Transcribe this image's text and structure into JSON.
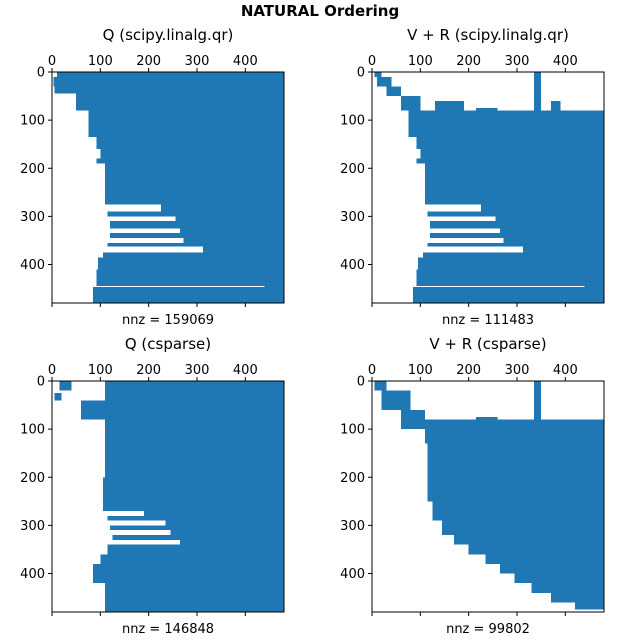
{
  "suptitle": "NATURAL Ordering",
  "colors": {
    "fill": "#1f77b4",
    "axis": "#000000",
    "background": "#ffffff"
  },
  "chart_data": [
    {
      "type": "spy",
      "title": "Q (scipy.linalg.qr)",
      "xlabel": "nnz = 159069",
      "xticks": [
        0,
        100,
        200,
        300,
        400
      ],
      "yticks": [
        0,
        100,
        200,
        300,
        400
      ],
      "xlim": [
        0,
        480
      ],
      "ylim": [
        480,
        0
      ],
      "bands": [
        {
          "y": [
            0,
            10
          ],
          "x": [
            10,
            480
          ]
        },
        {
          "y": [
            10,
            30
          ],
          "x": [
            3,
            480
          ]
        },
        {
          "y": [
            30,
            45
          ],
          "x": [
            5,
            480
          ]
        },
        {
          "y": [
            45,
            80
          ],
          "x": [
            50,
            480
          ]
        },
        {
          "y": [
            80,
            135
          ],
          "x": [
            75,
            480
          ]
        },
        {
          "y": [
            135,
            160
          ],
          "x": [
            92,
            480
          ]
        },
        {
          "y": [
            160,
            180
          ],
          "x": [
            100,
            480
          ]
        },
        {
          "y": [
            180,
            190
          ],
          "x": [
            92,
            480
          ]
        },
        {
          "y": [
            190,
            275
          ],
          "x": [
            110,
            480
          ]
        },
        {
          "y": [
            275,
            290
          ],
          "x": [
            225,
            480
          ]
        },
        {
          "y": [
            290,
            300
          ],
          "x": [
            115,
            480
          ]
        },
        {
          "y": [
            300,
            310
          ],
          "x": [
            255,
            480
          ]
        },
        {
          "y": [
            310,
            325
          ],
          "x": [
            120,
            480
          ]
        },
        {
          "y": [
            325,
            335
          ],
          "x": [
            265,
            480
          ]
        },
        {
          "y": [
            335,
            345
          ],
          "x": [
            120,
            480
          ]
        },
        {
          "y": [
            345,
            355
          ],
          "x": [
            272,
            480
          ]
        },
        {
          "y": [
            355,
            363
          ],
          "x": [
            115,
            480
          ]
        },
        {
          "y": [
            363,
            375
          ],
          "x": [
            312,
            480
          ]
        },
        {
          "y": [
            375,
            385
          ],
          "x": [
            105,
            480
          ]
        },
        {
          "y": [
            385,
            410
          ],
          "x": [
            95,
            480
          ]
        },
        {
          "y": [
            410,
            445
          ],
          "x": [
            92,
            480
          ]
        },
        {
          "y": [
            445,
            447
          ],
          "x": [
            440,
            480
          ]
        },
        {
          "y": [
            447,
            480
          ],
          "x": [
            85,
            480
          ]
        }
      ]
    },
    {
      "type": "spy",
      "title": "V + R (scipy.linalg.qr)",
      "xlabel": "nnz = 111483",
      "xticks": [
        0,
        100,
        200,
        300,
        400
      ],
      "yticks": [
        0,
        100,
        200,
        300,
        400
      ],
      "xlim": [
        0,
        480
      ],
      "ylim": [
        480,
        0
      ],
      "bands": [
        {
          "y": [
            0,
            10
          ],
          "x": [
            5,
            20
          ]
        },
        {
          "y": [
            10,
            30
          ],
          "x": [
            10,
            40
          ]
        },
        {
          "y": [
            30,
            50
          ],
          "x": [
            30,
            60
          ]
        },
        {
          "y": [
            50,
            80
          ],
          "x": [
            60,
            100
          ]
        },
        {
          "y": [
            80,
            135
          ],
          "x": [
            75,
            480
          ]
        },
        {
          "y": [
            135,
            160
          ],
          "x": [
            92,
            480
          ]
        },
        {
          "y": [
            160,
            180
          ],
          "x": [
            100,
            480
          ]
        },
        {
          "y": [
            180,
            190
          ],
          "x": [
            92,
            480
          ]
        },
        {
          "y": [
            190,
            275
          ],
          "x": [
            110,
            480
          ]
        },
        {
          "y": [
            275,
            290
          ],
          "x": [
            225,
            480
          ]
        },
        {
          "y": [
            290,
            300
          ],
          "x": [
            115,
            480
          ]
        },
        {
          "y": [
            300,
            310
          ],
          "x": [
            255,
            480
          ]
        },
        {
          "y": [
            310,
            325
          ],
          "x": [
            120,
            480
          ]
        },
        {
          "y": [
            325,
            335
          ],
          "x": [
            265,
            480
          ]
        },
        {
          "y": [
            335,
            345
          ],
          "x": [
            120,
            480
          ]
        },
        {
          "y": [
            345,
            355
          ],
          "x": [
            272,
            480
          ]
        },
        {
          "y": [
            355,
            363
          ],
          "x": [
            115,
            480
          ]
        },
        {
          "y": [
            363,
            375
          ],
          "x": [
            312,
            480
          ]
        },
        {
          "y": [
            375,
            385
          ],
          "x": [
            105,
            480
          ]
        },
        {
          "y": [
            385,
            410
          ],
          "x": [
            95,
            480
          ]
        },
        {
          "y": [
            410,
            445
          ],
          "x": [
            92,
            480
          ]
        },
        {
          "y": [
            445,
            447
          ],
          "x": [
            440,
            480
          ]
        },
        {
          "y": [
            447,
            480
          ],
          "x": [
            85,
            480
          ]
        },
        {
          "y": [
            60,
            80
          ],
          "x": [
            130,
            190
          ]
        },
        {
          "y": [
            75,
            80
          ],
          "x": [
            215,
            260
          ]
        },
        {
          "y": [
            0,
            80
          ],
          "x": [
            335,
            350
          ]
        },
        {
          "y": [
            60,
            80
          ],
          "x": [
            370,
            390
          ]
        },
        {
          "y": [
            80,
            135
          ],
          "x": [
            400,
            455
          ]
        }
      ]
    },
    {
      "type": "spy",
      "title": "Q (csparse)",
      "xlabel": "nnz = 146848",
      "xticks": [
        0,
        100,
        200,
        300,
        400
      ],
      "yticks": [
        0,
        100,
        200,
        300,
        400
      ],
      "xlim": [
        0,
        480
      ],
      "ylim": [
        480,
        0
      ],
      "bands": [
        {
          "y": [
            0,
            40
          ],
          "x": [
            110,
            480
          ]
        },
        {
          "y": [
            0,
            20
          ],
          "x": [
            15,
            40
          ]
        },
        {
          "y": [
            25,
            40
          ],
          "x": [
            5,
            20
          ]
        },
        {
          "y": [
            40,
            80
          ],
          "x": [
            60,
            480
          ]
        },
        {
          "y": [
            80,
            200
          ],
          "x": [
            110,
            480
          ]
        },
        {
          "y": [
            200,
            270
          ],
          "x": [
            105,
            480
          ]
        },
        {
          "y": [
            270,
            280
          ],
          "x": [
            190,
            480
          ]
        },
        {
          "y": [
            280,
            290
          ],
          "x": [
            115,
            480
          ]
        },
        {
          "y": [
            290,
            300
          ],
          "x": [
            235,
            480
          ]
        },
        {
          "y": [
            300,
            310
          ],
          "x": [
            120,
            480
          ]
        },
        {
          "y": [
            310,
            320
          ],
          "x": [
            245,
            480
          ]
        },
        {
          "y": [
            320,
            330
          ],
          "x": [
            125,
            480
          ]
        },
        {
          "y": [
            330,
            340
          ],
          "x": [
            265,
            480
          ]
        },
        {
          "y": [
            340,
            360
          ],
          "x": [
            115,
            480
          ]
        },
        {
          "y": [
            360,
            380
          ],
          "x": [
            100,
            480
          ]
        },
        {
          "y": [
            380,
            480
          ],
          "x": [
            110,
            480
          ]
        },
        {
          "y": [
            380,
            420
          ],
          "x": [
            85,
            110
          ]
        }
      ]
    },
    {
      "type": "spy",
      "title": "V + R (csparse)",
      "xlabel": "nnz = 99802",
      "xticks": [
        0,
        100,
        200,
        300,
        400
      ],
      "yticks": [
        0,
        100,
        200,
        300,
        400
      ],
      "xlim": [
        0,
        480
      ],
      "ylim": [
        480,
        0
      ],
      "bands": [
        {
          "y": [
            0,
            20
          ],
          "x": [
            5,
            30
          ]
        },
        {
          "y": [
            20,
            60
          ],
          "x": [
            20,
            80
          ]
        },
        {
          "y": [
            60,
            100
          ],
          "x": [
            60,
            110
          ]
        },
        {
          "y": [
            80,
            130
          ],
          "x": [
            110,
            480
          ]
        },
        {
          "y": [
            130,
            250
          ],
          "x": [
            115,
            480
          ]
        },
        {
          "y": [
            250,
            290
          ],
          "x": [
            125,
            480
          ]
        },
        {
          "y": [
            290,
            320
          ],
          "x": [
            145,
            480
          ]
        },
        {
          "y": [
            320,
            340
          ],
          "x": [
            170,
            480
          ]
        },
        {
          "y": [
            340,
            360
          ],
          "x": [
            200,
            480
          ]
        },
        {
          "y": [
            360,
            380
          ],
          "x": [
            235,
            480
          ]
        },
        {
          "y": [
            380,
            400
          ],
          "x": [
            265,
            480
          ]
        },
        {
          "y": [
            400,
            420
          ],
          "x": [
            295,
            480
          ]
        },
        {
          "y": [
            420,
            440
          ],
          "x": [
            330,
            480
          ]
        },
        {
          "y": [
            440,
            460
          ],
          "x": [
            370,
            480
          ]
        },
        {
          "y": [
            460,
            475
          ],
          "x": [
            420,
            480
          ]
        },
        {
          "y": [
            0,
            80
          ],
          "x": [
            335,
            350
          ]
        },
        {
          "y": [
            75,
            80
          ],
          "x": [
            215,
            260
          ]
        }
      ]
    }
  ]
}
